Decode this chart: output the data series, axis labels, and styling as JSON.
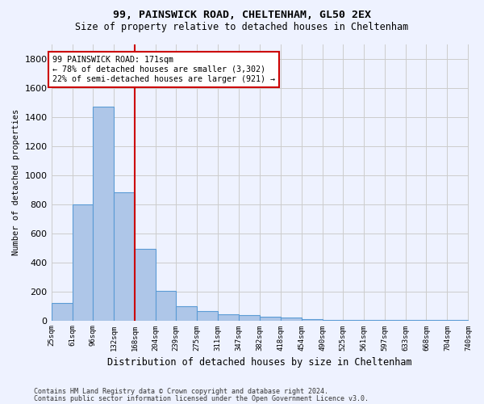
{
  "title1": "99, PAINSWICK ROAD, CHELTENHAM, GL50 2EX",
  "title2": "Size of property relative to detached houses in Cheltenham",
  "xlabel": "Distribution of detached houses by size in Cheltenham",
  "ylabel": "Number of detached properties",
  "footer1": "Contains HM Land Registry data © Crown copyright and database right 2024.",
  "footer2": "Contains public sector information licensed under the Open Government Licence v3.0.",
  "annotation_line1": "99 PAINSWICK ROAD: 171sqm",
  "annotation_line2": "← 78% of detached houses are smaller (3,302)",
  "annotation_line3": "22% of semi-detached houses are larger (921) →",
  "property_size": 171,
  "bar_edges": [
    25,
    61,
    96,
    132,
    168,
    204,
    239,
    275,
    311,
    347,
    382,
    418,
    454,
    490,
    525,
    561,
    597,
    633,
    668,
    704,
    740
  ],
  "bar_heights": [
    120,
    800,
    1470,
    880,
    490,
    205,
    100,
    65,
    40,
    35,
    25,
    20,
    8,
    3,
    3,
    3,
    2,
    1,
    1,
    1
  ],
  "bar_color": "#aec6e8",
  "bar_edgecolor": "#5b9bd5",
  "vline_color": "#cc0000",
  "vline_x": 168,
  "annotation_box_edgecolor": "#cc0000",
  "annotation_box_facecolor": "#ffffff",
  "ylim": [
    0,
    1900
  ],
  "yticks": [
    0,
    200,
    400,
    600,
    800,
    1000,
    1200,
    1400,
    1600,
    1800
  ],
  "grid_color": "#cccccc",
  "background_color": "#eef2ff",
  "figsize": [
    6.0,
    5.0
  ],
  "dpi": 100
}
